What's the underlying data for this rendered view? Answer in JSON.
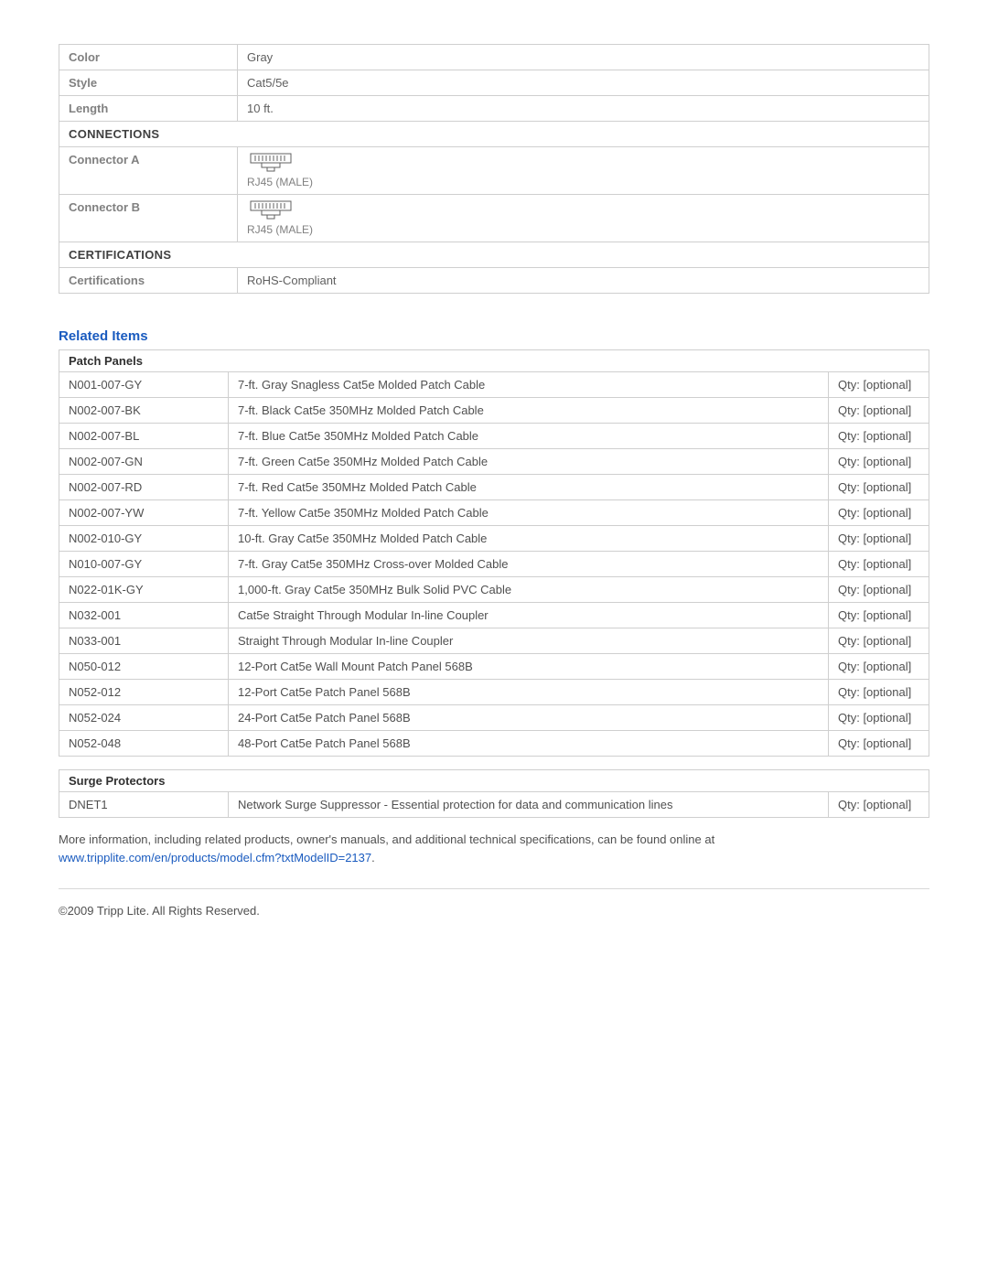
{
  "colors": {
    "heading_blue": "#1a5bbf",
    "border_gray": "#cfcfcf",
    "label_gray": "#808080",
    "text_gray": "#505050"
  },
  "spec_table": {
    "rows": [
      {
        "label": "Color",
        "value": "Gray"
      },
      {
        "label": "Style",
        "value": "Cat5/5e"
      },
      {
        "label": "Length",
        "value": "10 ft."
      }
    ],
    "section_connections": "CONNECTIONS",
    "connector_a_label": "Connector A",
    "connector_a_value": "RJ45 (MALE)",
    "connector_b_label": "Connector B",
    "connector_b_value": "RJ45 (MALE)",
    "section_certifications": "CERTIFICATIONS",
    "certifications_label": "Certifications",
    "certifications_value": "RoHS-Compliant"
  },
  "related_heading": "Related Items",
  "patch_panels": {
    "header": "Patch Panels",
    "qty_label": "Qty: [optional]",
    "rows": [
      {
        "sku": "N001-007-GY",
        "desc": "7-ft. Gray Snagless Cat5e Molded Patch Cable"
      },
      {
        "sku": "N002-007-BK",
        "desc": "7-ft. Black Cat5e 350MHz Molded Patch Cable"
      },
      {
        "sku": "N002-007-BL",
        "desc": "7-ft. Blue Cat5e 350MHz Molded Patch Cable"
      },
      {
        "sku": "N002-007-GN",
        "desc": "7-ft. Green Cat5e 350MHz Molded Patch Cable"
      },
      {
        "sku": "N002-007-RD",
        "desc": "7-ft. Red Cat5e 350MHz Molded Patch Cable"
      },
      {
        "sku": "N002-007-YW",
        "desc": "7-ft. Yellow Cat5e 350MHz Molded Patch Cable"
      },
      {
        "sku": "N002-010-GY",
        "desc": "10-ft. Gray Cat5e 350MHz Molded Patch Cable"
      },
      {
        "sku": "N010-007-GY",
        "desc": "7-ft. Gray Cat5e 350MHz Cross-over Molded Cable"
      },
      {
        "sku": "N022-01K-GY",
        "desc": "1,000-ft. Gray Cat5e 350MHz Bulk Solid PVC Cable"
      },
      {
        "sku": "N032-001",
        "desc": "Cat5e Straight Through Modular In-line Coupler"
      },
      {
        "sku": "N033-001",
        "desc": "Straight Through Modular In-line Coupler"
      },
      {
        "sku": "N050-012",
        "desc": "12-Port Cat5e Wall Mount Patch Panel 568B"
      },
      {
        "sku": "N052-012",
        "desc": "12-Port Cat5e Patch Panel 568B"
      },
      {
        "sku": "N052-024",
        "desc": "24-Port Cat5e Patch Panel 568B"
      },
      {
        "sku": "N052-048",
        "desc": "48-Port Cat5e Patch Panel 568B"
      }
    ]
  },
  "surge_protectors": {
    "header": "Surge Protectors",
    "qty_label": "Qty: [optional]",
    "rows": [
      {
        "sku": "DNET1",
        "desc": "Network Surge Suppressor - Essential protection for data and communication lines"
      }
    ]
  },
  "footer": {
    "text_before_link": "More information, including related products, owner's manuals, and additional technical specifications, can be found online at ",
    "link_text": "www.tripplite.com/en/products/model.cfm?txtModelID=2137",
    "text_after_link": ".",
    "copyright": "©2009 Tripp Lite.  All Rights Reserved."
  }
}
